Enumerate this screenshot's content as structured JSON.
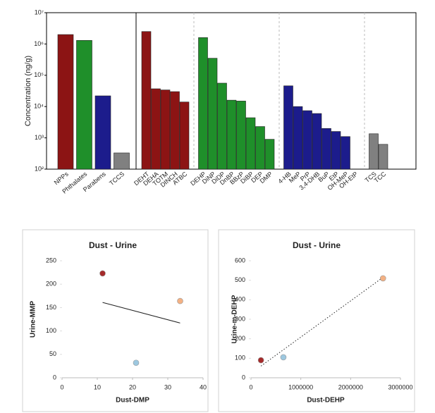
{
  "chart_data": [
    {
      "type": "bar",
      "log_scale": true,
      "ylabel": "Concentration (ng/g)",
      "ylim": [
        100,
        10000000
      ],
      "yticks": [
        {
          "value": 100,
          "label": "10²"
        },
        {
          "value": 1000,
          "label": "10³"
        },
        {
          "value": 10000,
          "label": "10⁴"
        },
        {
          "value": 100000,
          "label": "10⁵"
        },
        {
          "value": 1000000,
          "label": "10⁶"
        },
        {
          "value": 10000000,
          "label": "10⁷"
        }
      ],
      "panels": [
        {
          "categories": [
            "NPPs",
            "Phthalates",
            "Parabens",
            "TCCS"
          ],
          "values": [
            2000000,
            1300000,
            22000,
            330
          ],
          "colors": [
            "#8c1414",
            "#1f8f2a",
            "#1c1c8c",
            "#808080"
          ]
        },
        {
          "categories": [
            "DEHT",
            "DEHA",
            "TOTM",
            "DINCH",
            "ATBC",
            "DEHP",
            "DiNP",
            "DiDP",
            "DnBP",
            "BBzP",
            "DiBP",
            "DEP",
            "DMP",
            "4-HB",
            "MeP",
            "PrP",
            "3,4-DHB",
            "BuP",
            "EtP",
            "OH-MeP",
            "OH-EtP",
            "TCS",
            "TCC"
          ],
          "values": [
            2500000,
            37000,
            34000,
            30000,
            14000,
            1600000,
            350000,
            56000,
            16000,
            15000,
            4400,
            2300,
            900,
            46000,
            10000,
            7400,
            6000,
            2000,
            1600,
            1100,
            null,
            1350,
            620
          ],
          "colors": [
            "#8c1414",
            "#8c1414",
            "#8c1414",
            "#8c1414",
            "#8c1414",
            "#1f8f2a",
            "#1f8f2a",
            "#1f8f2a",
            "#1f8f2a",
            "#1f8f2a",
            "#1f8f2a",
            "#1f8f2a",
            "#1f8f2a",
            "#1c1c8c",
            "#1c1c8c",
            "#1c1c8c",
            "#1c1c8c",
            "#1c1c8c",
            "#1c1c8c",
            "#1c1c8c",
            "#1c1c8c",
            "#808080",
            "#808080"
          ]
        }
      ]
    },
    {
      "type": "scatter",
      "title": "Dust - Urine",
      "xlabel": "Dust-DMP",
      "ylabel": "Urine-MMP",
      "xlim": [
        0,
        40
      ],
      "xticks": [
        0,
        10,
        20,
        30,
        40
      ],
      "ylim": [
        0,
        250
      ],
      "yticks": [
        0,
        50,
        100,
        150,
        200,
        250
      ],
      "x": [
        11.5,
        21,
        33.5
      ],
      "values": [
        223,
        32,
        164
      ],
      "colors": [
        "#a52a2a",
        "#9dc8e0",
        "#f4b183"
      ],
      "trendline": {
        "x": [
          11.5,
          33.5
        ],
        "y": [
          161,
          117
        ],
        "style": "solid"
      }
    },
    {
      "type": "scatter",
      "title": "Dust - Urine",
      "xlabel": "Dust-DEHP",
      "ylabel": "Urine-m-DEHP",
      "xlim": [
        0,
        3000000
      ],
      "xticks": [
        0,
        1000000,
        2000000,
        3000000
      ],
      "ylim": [
        0,
        600
      ],
      "yticks": [
        0,
        100,
        200,
        300,
        400,
        500,
        600
      ],
      "x": [
        200000,
        650000,
        2650000
      ],
      "values": [
        90,
        105,
        510
      ],
      "colors": [
        "#a52a2a",
        "#9dc8e0",
        "#f4b183"
      ],
      "trendline": {
        "x": [
          200000,
          2650000
        ],
        "y": [
          60,
          515
        ],
        "style": "dotted"
      }
    }
  ]
}
